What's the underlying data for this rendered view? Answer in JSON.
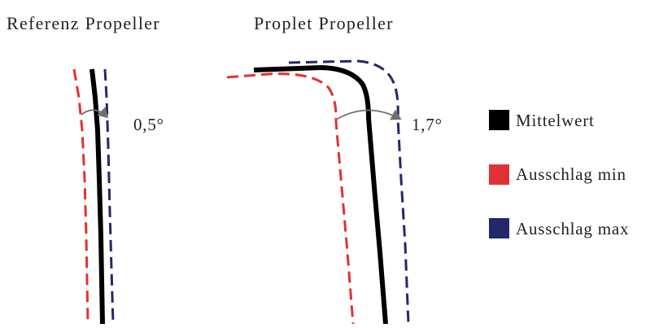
{
  "titles": {
    "reference": "Referenz Propeller",
    "proplet": "Proplet Propeller"
  },
  "angles": {
    "reference": "0,5°",
    "proplet": "1,7°"
  },
  "legend": {
    "items": [
      {
        "label": "Mittelwert",
        "color": "#000000"
      },
      {
        "label": "Ausschlag min",
        "color": "#e03234"
      },
      {
        "label": "Ausschlag max",
        "color": "#23286b"
      }
    ]
  },
  "colors": {
    "mean": "#000000",
    "min": "#e03234",
    "max": "#23286b",
    "arrow": "#707070"
  }
}
